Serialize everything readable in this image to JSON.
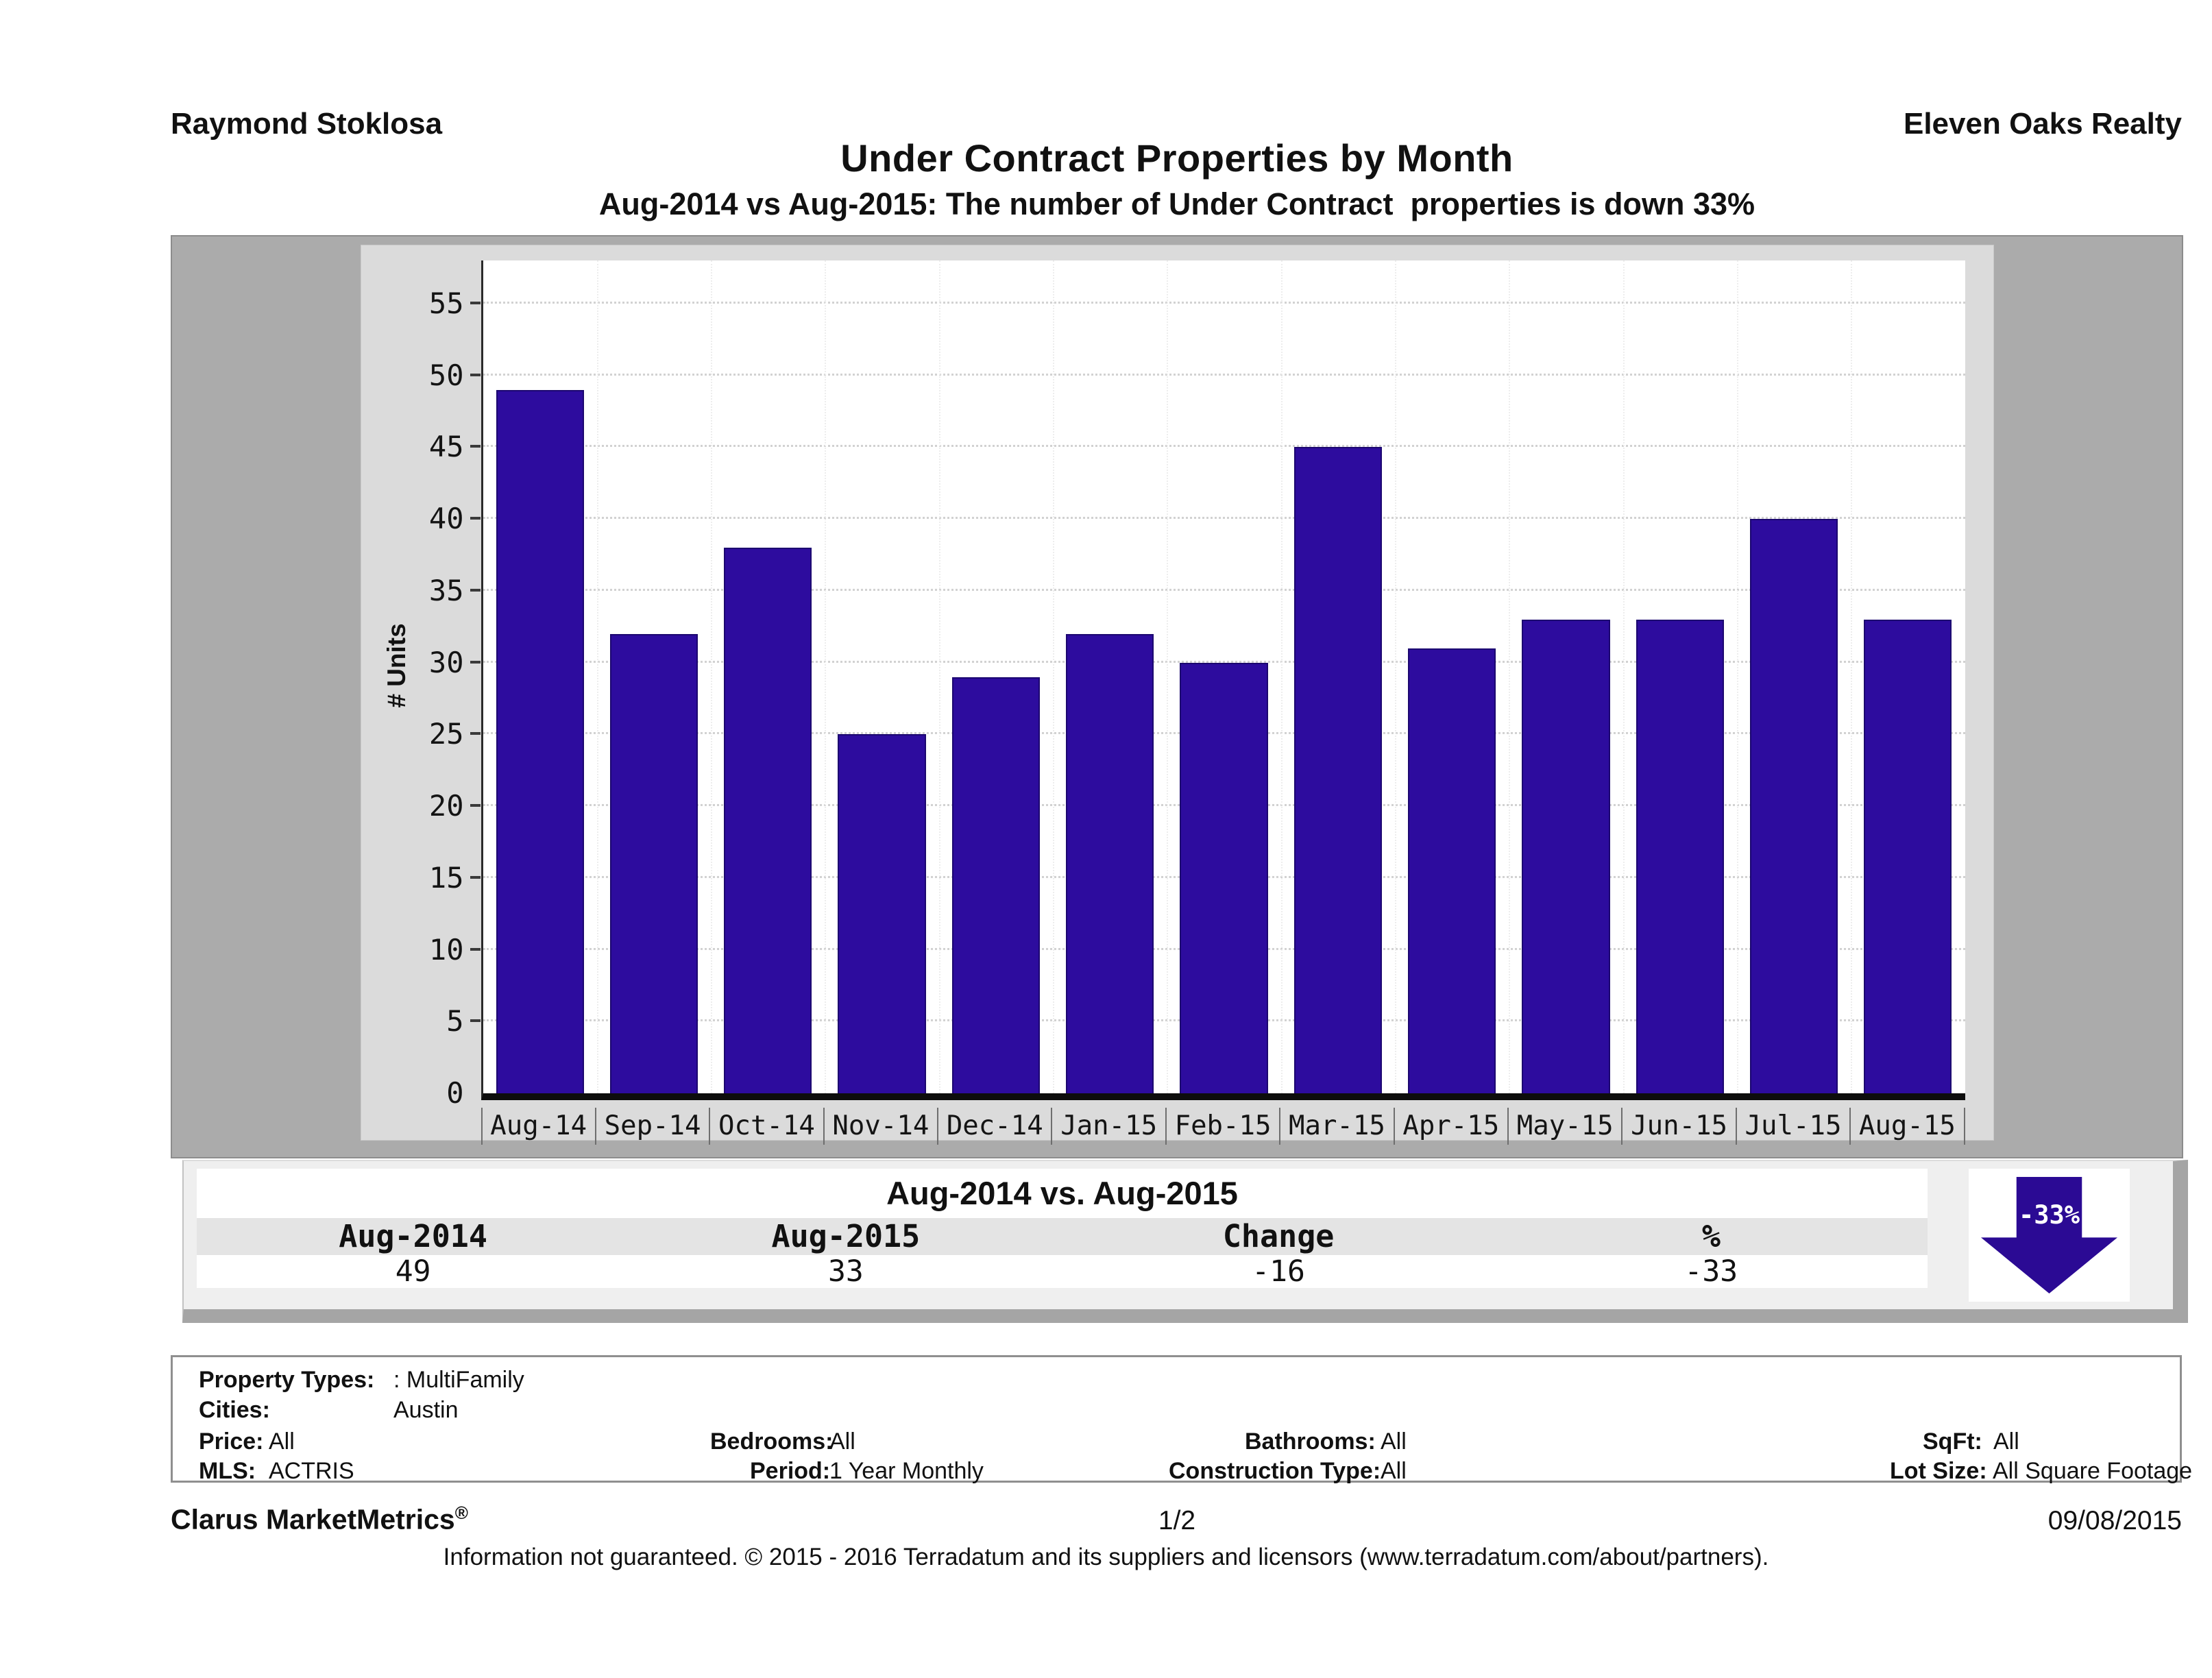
{
  "header": {
    "left": "Raymond Stoklosa",
    "right": "Eleven Oaks Realty"
  },
  "title": "Under Contract Properties by Month",
  "subtitle": "Aug-2014 vs Aug-2015: The number of Under Contract  properties is down 33%",
  "chart_data": {
    "type": "bar",
    "title": "Under Contract Properties by Month",
    "categories": [
      "Aug-14",
      "Sep-14",
      "Oct-14",
      "Nov-14",
      "Dec-14",
      "Jan-15",
      "Feb-15",
      "Mar-15",
      "Apr-15",
      "May-15",
      "Jun-15",
      "Jul-15",
      "Aug-15"
    ],
    "values": [
      49,
      32,
      38,
      25,
      29,
      32,
      30,
      45,
      31,
      33,
      33,
      40,
      33
    ],
    "xlabel": "",
    "ylabel": "# Units",
    "yticks": [
      0,
      5,
      10,
      15,
      20,
      25,
      30,
      35,
      40,
      45,
      50,
      55
    ],
    "ylim": [
      0,
      58
    ],
    "grid": "horizontal-dotted",
    "legend": "none",
    "bar_color": "#2d0c9e"
  },
  "comparison": {
    "title": "Aug-2014 vs. Aug-2015",
    "columns": [
      "Aug-2014",
      "Aug-2015",
      "Change",
      "%"
    ],
    "values": [
      "49",
      "33",
      "-16",
      "-33"
    ],
    "arrow_label": "-33%"
  },
  "params": {
    "property_types": {
      "label": "Property Types:",
      "value": ": MultiFamily"
    },
    "cities": {
      "label": "Cities:",
      "value": "Austin"
    },
    "price": {
      "label": "Price:",
      "value": "All"
    },
    "bedrooms": {
      "label": "Bedrooms:",
      "value": "All"
    },
    "bathrooms": {
      "label": "Bathrooms:",
      "value": "All"
    },
    "sqft": {
      "label": "SqFt:",
      "value": "All"
    },
    "mls": {
      "label": "MLS:",
      "value": "ACTRIS"
    },
    "period": {
      "label": "Period:",
      "value": "1 Year Monthly"
    },
    "construction_type": {
      "label": "Construction Type:",
      "value": "All"
    },
    "lot_size": {
      "label": "Lot Size:",
      "value": "All Square Footage"
    }
  },
  "footer": {
    "brand": "Clarus MarketMetrics",
    "reg": "®",
    "page": "1/2",
    "date": "09/08/2015",
    "disclaimer": "Information not guaranteed. © 2015 - 2016 Terradatum and its suppliers and licensors (www.terradatum.com/about/partners)."
  },
  "colors": {
    "bar": "#2d0c9e",
    "arrow": "#2b0a94",
    "chart_outer_bg": "#ababab",
    "chart_panel_bg": "#dbdbdb",
    "table_bg": "#efefef",
    "header_row_bg": "#e4e4e4"
  }
}
